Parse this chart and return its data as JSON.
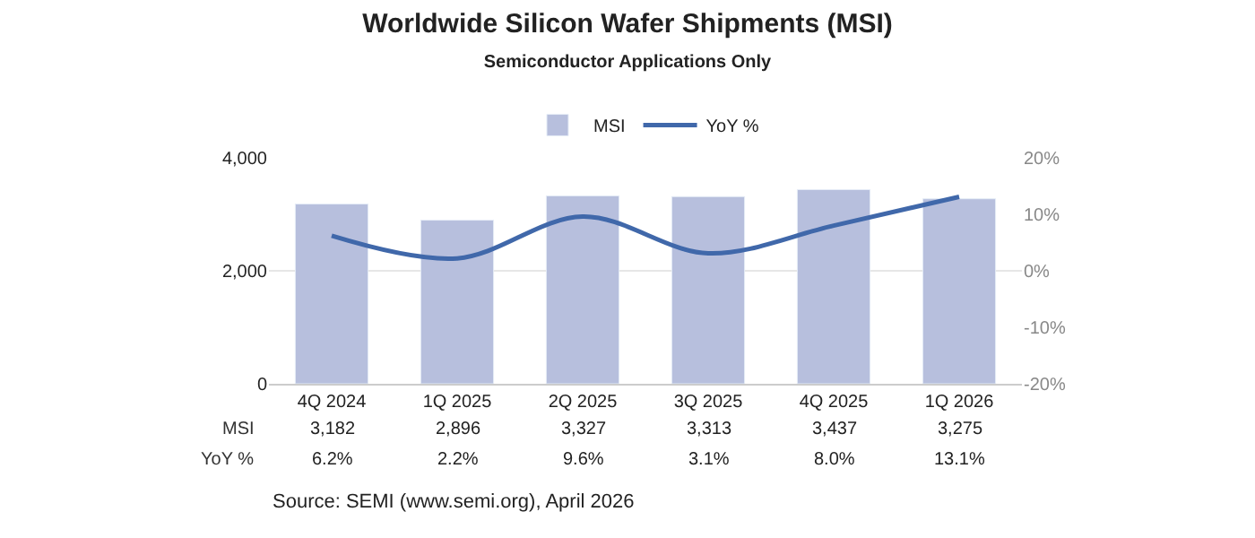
{
  "chart_data": {
    "type": "bar",
    "title": "Worldwide Silicon Wafer Shipments (MSI)",
    "subtitle": "Semiconductor Applications Only",
    "categories": [
      "4Q 2024",
      "1Q 2025",
      "2Q 2025",
      "3Q 2025",
      "4Q 2025",
      "1Q 2026"
    ],
    "series": [
      {
        "name": "MSI",
        "color": "#b7bfdd",
        "values": [
          3182,
          2896,
          3327,
          3313,
          3437,
          3275
        ],
        "value_labels": [
          "3,182",
          "2,896",
          "3,327",
          "3,313",
          "3,437",
          "3,275"
        ]
      },
      {
        "name": "YoY %",
        "type": "line",
        "axis": "y2",
        "color": "#4068aa",
        "values": [
          6.2,
          2.2,
          9.6,
          3.1,
          8.0,
          13.1
        ],
        "value_labels": [
          "6.2%",
          "2.2%",
          "9.6%",
          "3.1%",
          "8.0%",
          "13.1%"
        ]
      }
    ],
    "ylim": [
      0,
      4000
    ],
    "yticks": [
      {
        "value": 0,
        "label": "0"
      },
      {
        "value": 2000,
        "label": "2,000"
      },
      {
        "value": 4000,
        "label": "4,000"
      }
    ],
    "y2lim": [
      -20,
      20
    ],
    "y2ticks": [
      {
        "value": -20,
        "label": "-20%"
      },
      {
        "value": -10,
        "label": "-10%"
      },
      {
        "value": 0,
        "label": "0%"
      },
      {
        "value": 10,
        "label": "10%"
      },
      {
        "value": 20,
        "label": "20%"
      }
    ],
    "grid": "y",
    "legend": "top",
    "marker": "none",
    "line_style": "solid",
    "annotations": [
      "Source: SEMI (www.semi.org), April 2026"
    ]
  }
}
